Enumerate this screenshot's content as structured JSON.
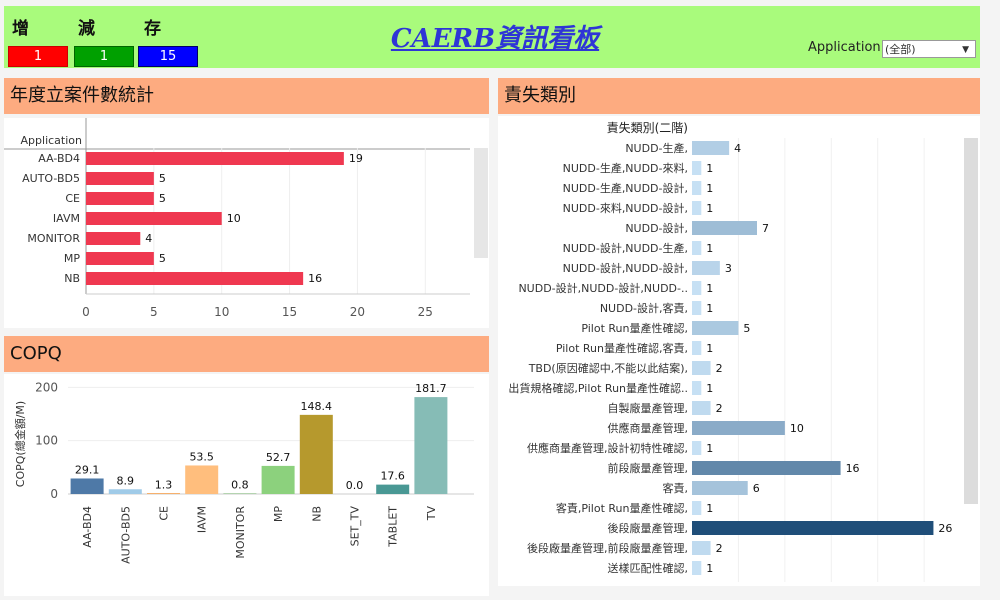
{
  "header": {
    "labels": [
      "增",
      "減",
      "存"
    ],
    "counters": [
      {
        "value": "1",
        "color": "#ff0000"
      },
      {
        "value": "1",
        "color": "#00a000"
      },
      {
        "value": "15",
        "color": "#0000ff"
      }
    ],
    "title": "CAERB資訊看板",
    "filter_label": "Application",
    "filter_value": "(全部)"
  },
  "panels": {
    "cases": "年度立案件數統計",
    "copq": "COPQ",
    "blame": "責失類別"
  },
  "chart_data": [
    {
      "type": "bar",
      "orientation": "horizontal",
      "color": "#ef3850",
      "header": "Application",
      "categories": [
        "AA-BD4",
        "AUTO-BD5",
        "CE",
        "IAVM",
        "MONITOR",
        "MP",
        "NB"
      ],
      "values": [
        19,
        5,
        5,
        10,
        4,
        5,
        16
      ],
      "xticks": [
        0,
        5,
        10,
        15,
        20,
        25
      ],
      "xlim": [
        0,
        28
      ]
    },
    {
      "type": "bar",
      "ylabel": "COPQ(總金額/M)",
      "yticks": [
        0,
        100,
        200
      ],
      "ylim": [
        0,
        210
      ],
      "categories": [
        "AA-BD4",
        "AUTO-BD5",
        "CE",
        "IAVM",
        "MONITOR",
        "MP",
        "NB",
        "SET_TV",
        "TABLET",
        "TV"
      ],
      "values": [
        29.1,
        8.9,
        1.3,
        53.5,
        0.8,
        52.7,
        148.4,
        0.0,
        17.6,
        181.7
      ],
      "value_labels": [
        "29.1",
        "8.9",
        "1.3",
        "53.5",
        "0.8",
        "52.7",
        "148.4",
        "0.0",
        "17.6",
        "181.7"
      ],
      "colors": [
        "#4e79a7",
        "#a0cbe8",
        "#f28e2b",
        "#ffbe7d",
        "#59a14f",
        "#8cd17d",
        "#b6992d",
        "#f1ce63",
        "#499894",
        "#86bcb6"
      ]
    },
    {
      "type": "bar",
      "orientation": "horizontal",
      "header": "責失類別(二階)",
      "categories": [
        "NUDD-生產,",
        "NUDD-生產,NUDD-來料,",
        "NUDD-生產,NUDD-設計,",
        "NUDD-來料,NUDD-設計,",
        "NUDD-設計,",
        "NUDD-設計,NUDD-生產,",
        "NUDD-設計,NUDD-設計,",
        "NUDD-設計,NUDD-設計,NUDD-..",
        "NUDD-設計,客責,",
        "Pilot Run量產性確認,",
        "Pilot Run量產性確認,客責,",
        "TBD(原因確認中,不能以此結案),",
        "出貨規格確認,Pilot Run量產性確認..",
        "自製廠量產管理,",
        "供應商量產管理,",
        "供應商量產管理,設計初特性確認,",
        "前段廠量產管理,",
        "客責,",
        "客責,Pilot Run量產性確認,",
        "後段廠量產管理,",
        "後段廠量產管理,前段廠量產管理,",
        "送樣匹配性確認,"
      ],
      "values": [
        4,
        1,
        1,
        1,
        7,
        1,
        3,
        1,
        1,
        5,
        1,
        2,
        1,
        2,
        10,
        1,
        16,
        6,
        1,
        26,
        2,
        1
      ],
      "xlim": [
        0,
        28
      ],
      "color_min": "#c6e0f4",
      "color_max": "#1f4e79"
    }
  ]
}
